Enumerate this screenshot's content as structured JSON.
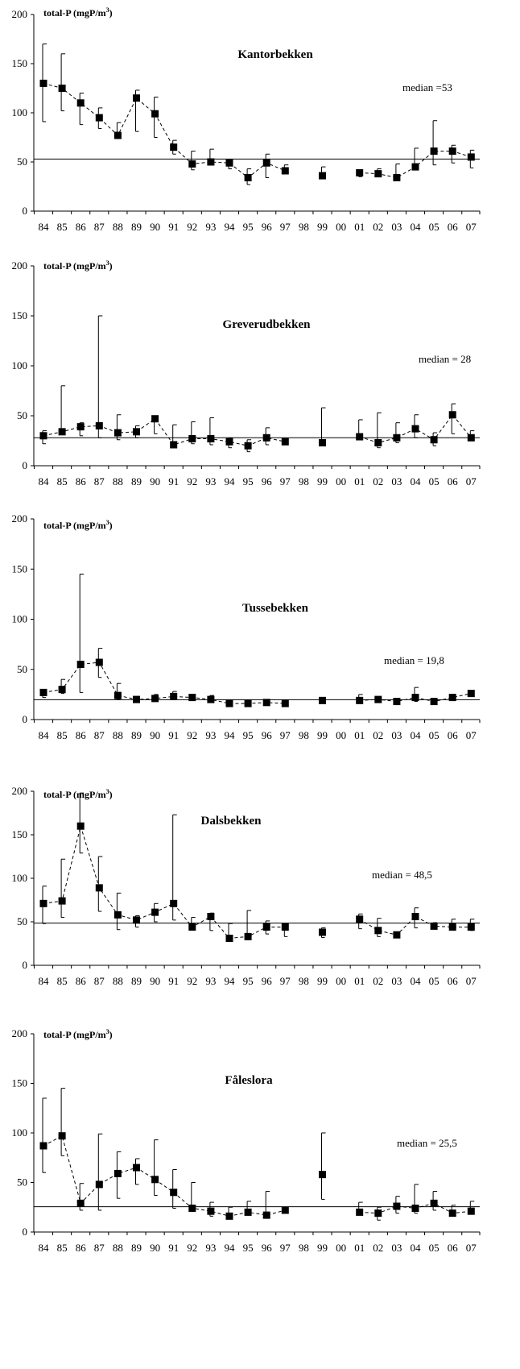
{
  "ylabel_prefix": "total-P (mgP/m",
  "ylabel_sup": "3",
  "ylabel_suffix": ")",
  "y_ticks": [
    "0",
    "50",
    "100",
    "150",
    "200"
  ],
  "x_ticks": [
    "84",
    "85",
    "86",
    "87",
    "88",
    "89",
    "90",
    "91",
    "92",
    "93",
    "94",
    "95",
    "96",
    "97",
    "98",
    "99",
    "00",
    "01",
    "02",
    "03",
    "04",
    "05",
    "06",
    "07"
  ],
  "chart_data": [
    {
      "type": "line",
      "title": "Kantorbekken",
      "median_label": "median =53",
      "median": 53,
      "ylim": [
        0,
        200
      ],
      "x": [
        "84",
        "85",
        "86",
        "87",
        "88",
        "89",
        "90",
        "91",
        "92",
        "93",
        "94",
        "95",
        "96",
        "97",
        "98",
        "99",
        "00",
        "01",
        "02",
        "03",
        "04",
        "05",
        "06",
        "07"
      ],
      "mean": [
        130,
        125,
        110,
        95,
        77,
        115,
        99,
        65,
        48,
        50,
        49,
        34,
        49,
        41,
        null,
        36,
        null,
        39,
        38,
        34,
        45,
        61,
        61,
        55
      ],
      "max": [
        170,
        160,
        120,
        105,
        90,
        123,
        116,
        72,
        61,
        63,
        49,
        43,
        58,
        47,
        null,
        45,
        null,
        41,
        43,
        48,
        64,
        92,
        67,
        62
      ],
      "min": [
        91,
        102,
        88,
        84,
        74,
        81,
        75,
        58,
        42,
        47,
        43,
        27,
        34,
        40,
        null,
        36,
        null,
        35,
        35,
        32,
        45,
        47,
        49,
        44
      ],
      "grid": false
    },
    {
      "type": "line",
      "title": "Greverudbekken",
      "median_label": "median = 28",
      "median": 28,
      "ylim": [
        0,
        200
      ],
      "x": [
        "84",
        "85",
        "86",
        "87",
        "88",
        "89",
        "90",
        "91",
        "92",
        "93",
        "94",
        "95",
        "96",
        "97",
        "98",
        "99",
        "00",
        "01",
        "02",
        "03",
        "04",
        "05",
        "06",
        "07"
      ],
      "mean": [
        30,
        34,
        39,
        40,
        33,
        34,
        47,
        21,
        27,
        27,
        24,
        20,
        28,
        24,
        null,
        23,
        null,
        29,
        23,
        28,
        37,
        26,
        51,
        28
      ],
      "max": [
        35,
        80,
        43,
        150,
        51,
        40,
        48,
        41,
        44,
        48,
        28,
        26,
        38,
        25,
        null,
        58,
        null,
        46,
        53,
        43,
        51,
        33,
        62,
        35
      ],
      "min": [
        22,
        32,
        30,
        28,
        26,
        28,
        32,
        20,
        22,
        21,
        18,
        14,
        21,
        22,
        null,
        22,
        null,
        27,
        18,
        23,
        28,
        20,
        32,
        25
      ],
      "grid": false
    },
    {
      "type": "line",
      "title": "Tussebekken",
      "median_label": "median = 19,8",
      "median": 19.8,
      "ylim": [
        0,
        200
      ],
      "x": [
        "84",
        "85",
        "86",
        "87",
        "88",
        "89",
        "90",
        "91",
        "92",
        "93",
        "94",
        "95",
        "96",
        "97",
        "98",
        "99",
        "00",
        "01",
        "02",
        "03",
        "04",
        "05",
        "06",
        "07"
      ],
      "mean": [
        27,
        30,
        55,
        57,
        24,
        20,
        21,
        23,
        22,
        20,
        16,
        16,
        17,
        16,
        null,
        19,
        null,
        19,
        20,
        18,
        22,
        18,
        22,
        26
      ],
      "max": [
        30,
        40,
        145,
        71,
        36,
        23,
        25,
        28,
        25,
        24,
        19,
        18,
        19,
        19,
        null,
        22,
        null,
        25,
        21,
        20,
        32,
        20,
        23,
        28
      ],
      "min": [
        22,
        26,
        27,
        42,
        20,
        18,
        18,
        20,
        19,
        17,
        15,
        15,
        15,
        15,
        null,
        17,
        null,
        17,
        18,
        17,
        18,
        16,
        20,
        23
      ],
      "grid": false
    },
    {
      "type": "line",
      "title": "Dalsbekken",
      "median_label": "median = 48,5",
      "median": 48.5,
      "ylim": [
        0,
        200
      ],
      "x": [
        "84",
        "85",
        "86",
        "87",
        "88",
        "89",
        "90",
        "91",
        "92",
        "93",
        "94",
        "95",
        "96",
        "97",
        "98",
        "99",
        "00",
        "01",
        "02",
        "03",
        "04",
        "05",
        "06",
        "07"
      ],
      "mean": [
        71,
        74,
        160,
        89,
        58,
        52,
        61,
        71,
        44,
        56,
        31,
        33,
        44,
        44,
        null,
        38,
        null,
        53,
        40,
        35,
        56,
        45,
        44,
        44
      ],
      "max": [
        91,
        122,
        198,
        125,
        83,
        57,
        71,
        173,
        55,
        60,
        48,
        63,
        51,
        47,
        null,
        43,
        null,
        59,
        54,
        38,
        66,
        49,
        53,
        53
      ],
      "min": [
        48,
        55,
        129,
        62,
        41,
        44,
        50,
        52,
        42,
        40,
        30,
        32,
        36,
        33,
        null,
        32,
        null,
        42,
        33,
        33,
        43,
        42,
        42,
        40
      ],
      "grid": false
    },
    {
      "type": "line",
      "title": "Fåleslora",
      "median_label": "median = 25,5",
      "median": 25.5,
      "ylim": [
        0,
        200
      ],
      "x": [
        "84",
        "85",
        "86",
        "87",
        "88",
        "89",
        "90",
        "91",
        "92",
        "93",
        "94",
        "95",
        "96",
        "97",
        "98",
        "99",
        "00",
        "01",
        "02",
        "03",
        "04",
        "05",
        "06",
        "07"
      ],
      "mean": [
        87,
        97,
        29,
        48,
        59,
        65,
        53,
        40,
        24,
        21,
        16,
        20,
        17,
        22,
        null,
        58,
        null,
        20,
        19,
        26,
        24,
        29,
        19,
        21
      ],
      "max": [
        135,
        145,
        49,
        99,
        81,
        74,
        93,
        63,
        50,
        30,
        25,
        31,
        41,
        23,
        null,
        100,
        null,
        30,
        25,
        36,
        48,
        41,
        27,
        31
      ],
      "min": [
        60,
        77,
        22,
        22,
        34,
        48,
        37,
        24,
        21,
        16,
        14,
        17,
        16,
        20,
        null,
        33,
        null,
        18,
        12,
        19,
        19,
        22,
        17,
        19
      ],
      "grid": false
    }
  ]
}
